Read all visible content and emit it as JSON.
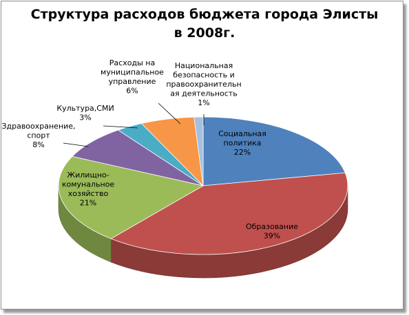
{
  "chart_data": {
    "type": "pie",
    "title": [
      "Структура расходов бюджета города Элисты",
      "в 2008г."
    ],
    "slices": [
      {
        "label": [
          "Социальная",
          "политика"
        ],
        "pct_text": "22%",
        "value": 22,
        "color": "#4f81bd"
      },
      {
        "label": [
          "Образование"
        ],
        "pct_text": "39%",
        "value": 39,
        "color": "#c0504d"
      },
      {
        "label": [
          "Жилищно-",
          "комунальное",
          "хозяйство"
        ],
        "pct_text": "21%",
        "value": 21,
        "color": "#9bbb59"
      },
      {
        "label": [
          "Здравоохранение,",
          "спорт"
        ],
        "pct_text": "8%",
        "value": 8,
        "color": "#8064a2"
      },
      {
        "label": [
          "Культура,СМИ"
        ],
        "pct_text": "3%",
        "value": 3,
        "color": "#4bacc6"
      },
      {
        "label": [
          "Расходы на",
          "муниципальное",
          "управление"
        ],
        "pct_text": "6%",
        "value": 6,
        "color": "#f79646"
      },
      {
        "label": [
          "Национальная",
          "безопасность и",
          "правоохранительн",
          "ая деятельность"
        ],
        "pct_text": "1%",
        "value": 1,
        "color": "#a5bfe0"
      }
    ],
    "legend": "none"
  }
}
